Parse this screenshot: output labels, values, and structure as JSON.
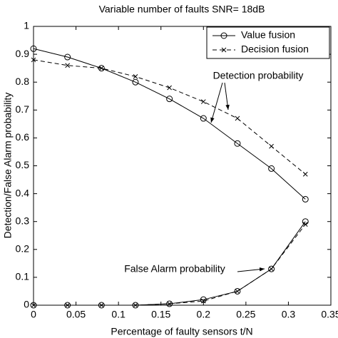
{
  "chart_data": {
    "type": "line",
    "title": "Variable number of faults SNR= 18dB",
    "x_label": "Percentage of faulty sensors t/N",
    "y_label": "Detection/False Alarm probability",
    "x": [
      0,
      0.04,
      0.08,
      0.12,
      0.16,
      0.2,
      0.24,
      0.28,
      0.32
    ],
    "series": [
      {
        "name": "Value fusion",
        "color": "#000000",
        "marker": "circle",
        "dash": "solid",
        "values": [
          0.92,
          0.89,
          0.85,
          0.8,
          0.74,
          0.67,
          0.58,
          0.49,
          0.38
        ],
        "false_alarm_values": [
          0,
          0,
          0,
          0,
          0.005,
          0.02,
          0.05,
          0.13,
          0.3
        ]
      },
      {
        "name": "Decision fusion",
        "color": "#000000",
        "marker": "x",
        "dash": "dashed",
        "values": [
          0.88,
          0.86,
          0.85,
          0.82,
          0.78,
          0.73,
          0.67,
          0.57,
          0.47
        ],
        "false_alarm_values": [
          0,
          0,
          0,
          0,
          0.005,
          0.015,
          0.05,
          0.13,
          0.29
        ]
      }
    ],
    "annotations": [
      "Detection probability",
      "False Alarm probability"
    ],
    "xlim": [
      0,
      0.35
    ],
    "ylim": [
      0,
      1
    ],
    "xticks": [
      0,
      0.05,
      0.1,
      0.15,
      0.2,
      0.25,
      0.3,
      0.35
    ],
    "yticks": [
      0,
      0.1,
      0.2,
      0.3,
      0.4,
      0.5,
      0.6,
      0.7,
      0.8,
      0.9,
      1
    ],
    "legend": "upper right",
    "grid": false
  }
}
